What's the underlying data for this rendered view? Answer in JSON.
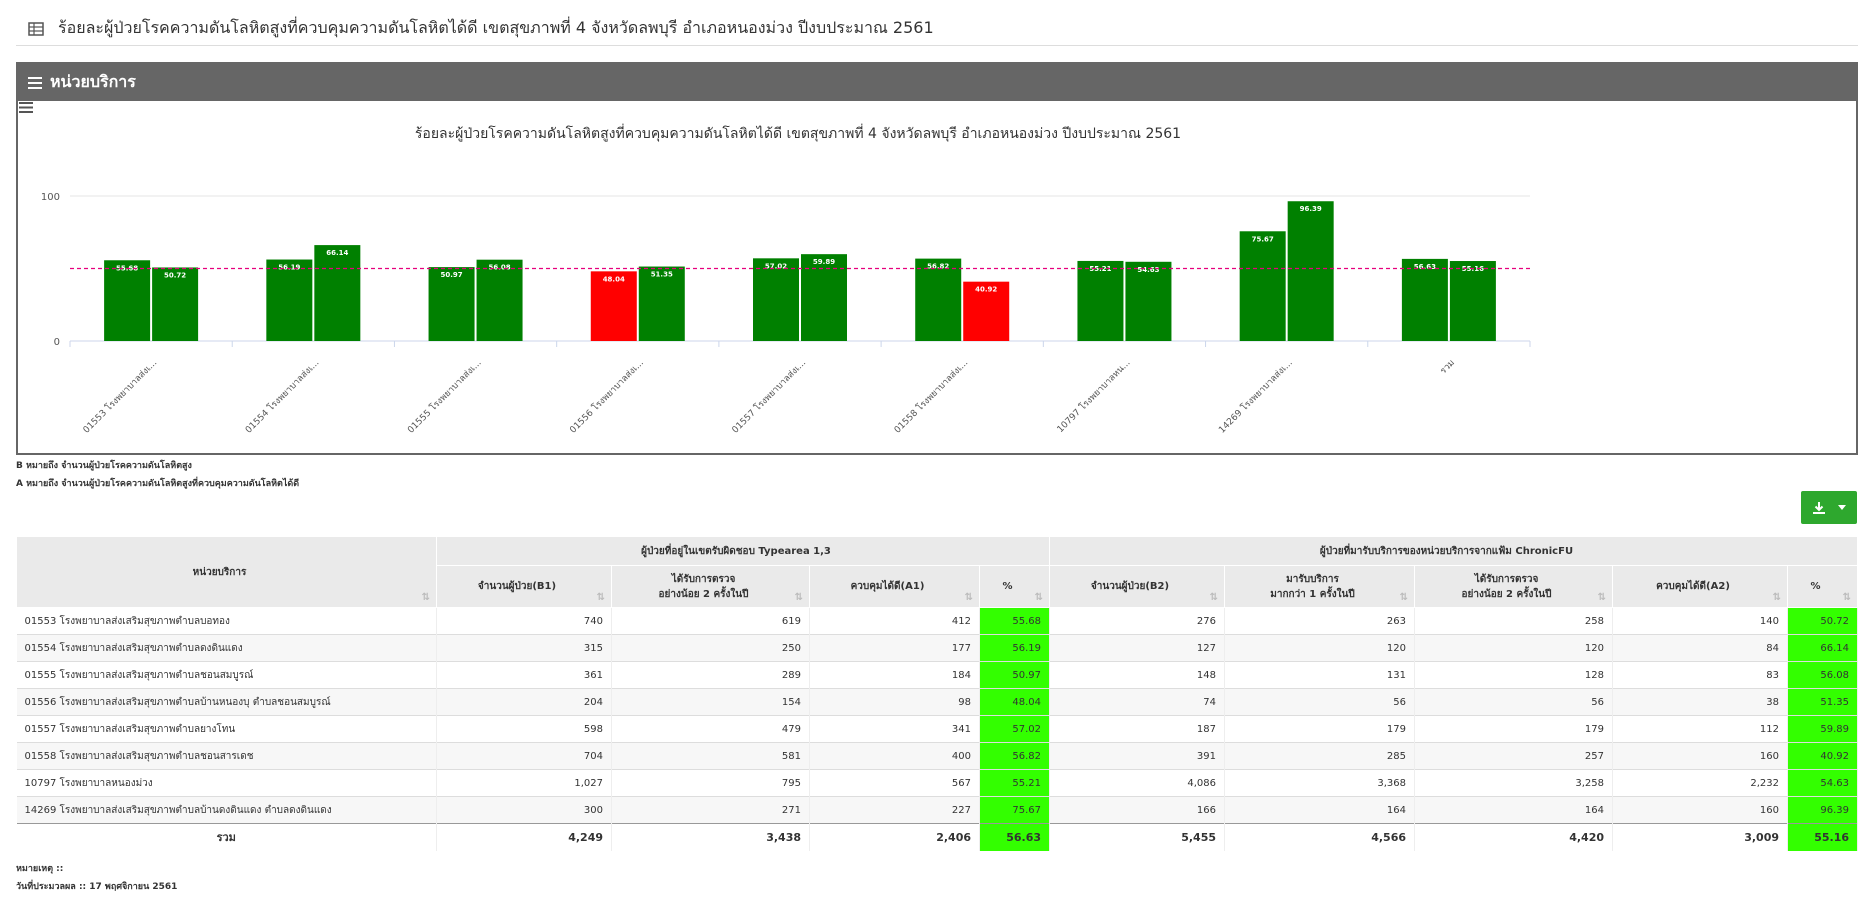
{
  "page": {
    "title": "ร้อยละผู้ป่วยโรคความดันโลหิตสูงที่ควบคุมความดันโลหิตได้ดี เขตสุขภาพที่ 4 จังหวัดลพบุรี อำเภอหนองม่วง ปีงบประมาณ 2561",
    "grid_icon": "table-icon"
  },
  "panel": {
    "title": "หน่วยบริการ",
    "icon": "bars-icon",
    "menu_icon": "hamburger-menu-icon"
  },
  "chart_data": {
    "type": "bar",
    "title": "ร้อยละผู้ป่วยโรคความดันโลหิตสูงที่ควบคุมความดันโลหิตได้ดี เขตสุขภาพที่ 4 จังหวัดลพบุรี อำเภอหนองม่วง ปีงบประมาณ 2561",
    "categories": [
      "01553 โรงพยาบาลส่งเ...",
      "01554 โรงพยาบาลส่งเ...",
      "01555 โรงพยาบาลส่งเ...",
      "01556 โรงพยาบาลส่งเ...",
      "01557 โรงพยาบาลส่งเ...",
      "01558 โรงพยาบาลส่งเ...",
      "10797 โรงพยาบาลหน...",
      "14269 โรงพยาบาลส่งเ...",
      "รวม"
    ],
    "series": [
      {
        "values": [
          55.68,
          56.19,
          50.97,
          48.04,
          57.02,
          56.82,
          55.21,
          75.67,
          56.63
        ]
      },
      {
        "values": [
          50.72,
          66.14,
          56.08,
          51.35,
          59.89,
          40.92,
          54.63,
          96.39,
          55.16
        ]
      }
    ],
    "target_line": 50,
    "target_line_color": "#e6007e",
    "above_color": "#008000",
    "below_color": "#ff0000",
    "ylim": [
      0,
      100
    ],
    "yticks": [
      "0",
      "100"
    ],
    "grid": true
  },
  "notes": {
    "b_note": "B หมายถึง จำนวนผู้ป่วยโรคความดันโลหิตสูง",
    "a_note": "A หมายถึง จำนวนผู้ป่วยโรคความดันโลหิตสูงที่ควบคุมความดันโลหิตได้ดี",
    "remark": "หมายเหตุ ::",
    "processed": "วันที่ประมวลผล :: 17 พฤศจิกายน 2561"
  },
  "download": {
    "icon": "download-icon",
    "caret": "caret-down-icon"
  },
  "table": {
    "col_unit": "หน่วยบริการ",
    "group1": "ผู้ป่วยที่อยู่ในเขตรับผิดชอบ Typearea 1,3",
    "group2": "ผู้ป่วยที่มารับบริการของหน่วยบริการจากแฟ้ม ChronicFU",
    "g1_cols": [
      "จำนวนผู้ป่วย(B1)",
      "ได้รับการตรวจ\nอย่างน้อย 2 ครั้งในปี",
      "ควบคุมได้ดี(A1)",
      "%"
    ],
    "g2_cols": [
      "จำนวนผู้ป่วย(B2)",
      "มารับบริการ\nมากกว่า 1 ครั้งในปี",
      "ได้รับการตรวจ\nอย่างน้อย 2 ครั้งในปี",
      "ควบคุมได้ดี(A2)",
      "%"
    ],
    "sort_icon": "sort-icon",
    "rows": [
      [
        "01553 โรงพยาบาลส่งเสริมสุขภาพตำบลบอทอง",
        "740",
        "619",
        "412",
        "55.68",
        "276",
        "263",
        "258",
        "140",
        "50.72"
      ],
      [
        "01554 โรงพยาบาลส่งเสริมสุขภาพตำบลดงดินแดง",
        "315",
        "250",
        "177",
        "56.19",
        "127",
        "120",
        "120",
        "84",
        "66.14"
      ],
      [
        "01555 โรงพยาบาลส่งเสริมสุขภาพตำบลชอนสมบูรณ์",
        "361",
        "289",
        "184",
        "50.97",
        "148",
        "131",
        "128",
        "83",
        "56.08"
      ],
      [
        "01556 โรงพยาบาลส่งเสริมสุขภาพตำบลบ้านหนองบุ ตำบลชอนสมบูรณ์",
        "204",
        "154",
        "98",
        "48.04",
        "74",
        "56",
        "56",
        "38",
        "51.35"
      ],
      [
        "01557 โรงพยาบาลส่งเสริมสุขภาพตำบลยางโทน",
        "598",
        "479",
        "341",
        "57.02",
        "187",
        "179",
        "179",
        "112",
        "59.89"
      ],
      [
        "01558 โรงพยาบาลส่งเสริมสุขภาพตำบลชอนสารเดช",
        "704",
        "581",
        "400",
        "56.82",
        "391",
        "285",
        "257",
        "160",
        "40.92"
      ],
      [
        "10797 โรงพยาบาลหนองม่วง",
        "1,027",
        "795",
        "567",
        "55.21",
        "4,086",
        "3,368",
        "3,258",
        "2,232",
        "54.63"
      ],
      [
        "14269 โรงพยาบาลส่งเสริมสุขภาพตำบลบ้านดงดินแดง ตำบลดงดินแดง",
        "300",
        "271",
        "227",
        "75.67",
        "166",
        "164",
        "164",
        "160",
        "96.39"
      ]
    ],
    "total": [
      "รวม",
      "4,249",
      "3,438",
      "2,406",
      "56.63",
      "5,455",
      "4,566",
      "4,420",
      "3,009",
      "55.16"
    ]
  }
}
